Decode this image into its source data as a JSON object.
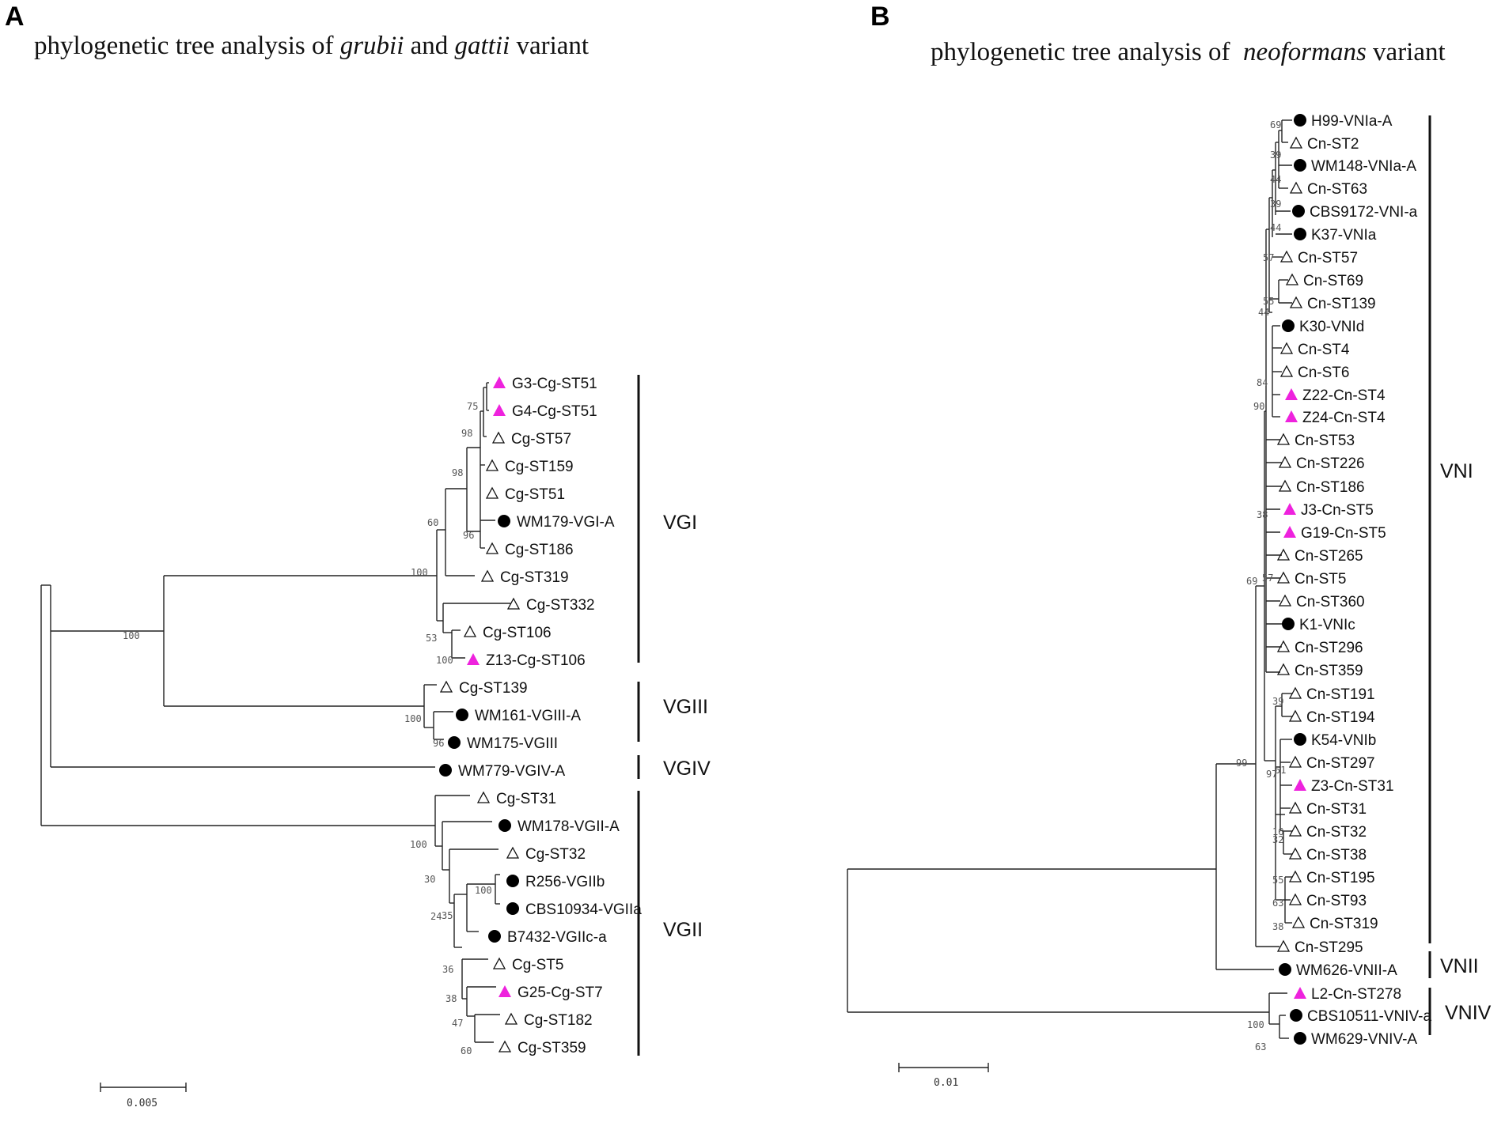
{
  "panelA": {
    "letter": "A",
    "title_pre": "phylogenetic tree analysis of ",
    "title_it1": "grubii",
    "title_mid": " and ",
    "title_it2": "gattii",
    "title_post": " variant",
    "leaves": [
      {
        "label": "G3-Cg-ST51",
        "marker": "magenta-triangle"
      },
      {
        "label": "G4-Cg-ST51",
        "marker": "magenta-triangle"
      },
      {
        "label": "Cg-ST57",
        "marker": "open-triangle"
      },
      {
        "label": "Cg-ST159",
        "marker": "open-triangle"
      },
      {
        "label": "Cg-ST51",
        "marker": "open-triangle"
      },
      {
        "label": "WM179-VGI-A",
        "marker": "black-circle"
      },
      {
        "label": "Cg-ST186",
        "marker": "open-triangle"
      },
      {
        "label": "Cg-ST319",
        "marker": "open-triangle"
      },
      {
        "label": "Cg-ST332",
        "marker": "open-triangle"
      },
      {
        "label": "Cg-ST106",
        "marker": "open-triangle"
      },
      {
        "label": "Z13-Cg-ST106",
        "marker": "magenta-triangle"
      },
      {
        "label": "Cg-ST139",
        "marker": "open-triangle"
      },
      {
        "label": "WM161-VGIII-A",
        "marker": "black-circle"
      },
      {
        "label": "WM175-VGIII",
        "marker": "black-circle"
      },
      {
        "label": "WM779-VGIV-A",
        "marker": "black-circle"
      },
      {
        "label": "Cg-ST31",
        "marker": "open-triangle"
      },
      {
        "label": "WM178-VGII-A",
        "marker": "black-circle"
      },
      {
        "label": "Cg-ST32",
        "marker": "open-triangle"
      },
      {
        "label": "R256-VGIIb",
        "marker": "black-circle"
      },
      {
        "label": "CBS10934-VGIIa",
        "marker": "black-circle"
      },
      {
        "label": "B7432-VGIIc-a",
        "marker": "black-circle"
      },
      {
        "label": "Cg-ST5",
        "marker": "open-triangle"
      },
      {
        "label": "G25-Cg-ST7",
        "marker": "magenta-triangle"
      },
      {
        "label": "Cg-ST182",
        "marker": "open-triangle"
      },
      {
        "label": "Cg-ST359",
        "marker": "open-triangle"
      }
    ],
    "bootstraps": [
      "75",
      "98",
      "98",
      "60",
      "96",
      "100",
      "100",
      "53",
      "100",
      "100",
      "96",
      "100",
      "30",
      "24",
      "35",
      "100",
      "36",
      "38",
      "47",
      "60"
    ],
    "clades": [
      "VGI",
      "VGIII",
      "VGIV",
      "VGII"
    ],
    "scale_label": "0.005"
  },
  "panelB": {
    "letter": "B",
    "title_pre": "phylogenetic tree analysis of  ",
    "title_it": "neoformans",
    "title_post": " variant",
    "leaves": [
      {
        "label": "H99-VNIa-A",
        "marker": "black-circle"
      },
      {
        "label": "Cn-ST2",
        "marker": "open-triangle"
      },
      {
        "label": "WM148-VNIa-A",
        "marker": "black-circle"
      },
      {
        "label": "Cn-ST63",
        "marker": "open-triangle"
      },
      {
        "label": "CBS9172-VNI-a",
        "marker": "black-circle"
      },
      {
        "label": "K37-VNIa",
        "marker": "black-circle"
      },
      {
        "label": "Cn-ST57",
        "marker": "open-triangle"
      },
      {
        "label": "Cn-ST69",
        "marker": "open-triangle"
      },
      {
        "label": "Cn-ST139",
        "marker": "open-triangle"
      },
      {
        "label": "K30-VNId",
        "marker": "black-circle"
      },
      {
        "label": "Cn-ST4",
        "marker": "open-triangle"
      },
      {
        "label": "Cn-ST6",
        "marker": "open-triangle"
      },
      {
        "label": "Z22-Cn-ST4",
        "marker": "magenta-triangle"
      },
      {
        "label": "Z24-Cn-ST4",
        "marker": "magenta-triangle"
      },
      {
        "label": "Cn-ST53",
        "marker": "open-triangle"
      },
      {
        "label": "Cn-ST226",
        "marker": "open-triangle"
      },
      {
        "label": "Cn-ST186",
        "marker": "open-triangle"
      },
      {
        "label": "J3-Cn-ST5",
        "marker": "magenta-triangle"
      },
      {
        "label": "G19-Cn-ST5",
        "marker": "magenta-triangle"
      },
      {
        "label": "Cn-ST265",
        "marker": "open-triangle"
      },
      {
        "label": "Cn-ST5",
        "marker": "open-triangle"
      },
      {
        "label": "Cn-ST360",
        "marker": "open-triangle"
      },
      {
        "label": "K1-VNIc",
        "marker": "black-circle"
      },
      {
        "label": "Cn-ST296",
        "marker": "open-triangle"
      },
      {
        "label": "Cn-ST359",
        "marker": "open-triangle"
      },
      {
        "label": "Cn-ST191",
        "marker": "open-triangle"
      },
      {
        "label": "Cn-ST194",
        "marker": "open-triangle"
      },
      {
        "label": "K54-VNIb",
        "marker": "black-circle"
      },
      {
        "label": "Cn-ST297",
        "marker": "open-triangle"
      },
      {
        "label": "Z3-Cn-ST31",
        "marker": "magenta-triangle"
      },
      {
        "label": "Cn-ST31",
        "marker": "open-triangle"
      },
      {
        "label": "Cn-ST32",
        "marker": "open-triangle"
      },
      {
        "label": "Cn-ST38",
        "marker": "open-triangle"
      },
      {
        "label": "Cn-ST195",
        "marker": "open-triangle"
      },
      {
        "label": "Cn-ST93",
        "marker": "open-triangle"
      },
      {
        "label": "Cn-ST319",
        "marker": "open-triangle"
      },
      {
        "label": "Cn-ST295",
        "marker": "open-triangle"
      },
      {
        "label": "WM626-VNII-A",
        "marker": "black-circle"
      },
      {
        "label": "L2-Cn-ST278",
        "marker": "magenta-triangle"
      },
      {
        "label": "CBS10511-VNIV-a",
        "marker": "black-circle"
      },
      {
        "label": "WM629-VNIV-A",
        "marker": "black-circle"
      }
    ],
    "bootstraps": [
      "69",
      "39",
      "44",
      "39",
      "44",
      "57",
      "55",
      "44",
      "84",
      "90",
      "38",
      "57",
      "69",
      "39",
      "51",
      "97",
      "16",
      "32",
      "55",
      "63",
      "38",
      "99",
      "100",
      "63"
    ],
    "clades": [
      "VNI",
      "VNII",
      "VNIV"
    ],
    "scale_label": "0.01"
  },
  "colors": {
    "magenta": "#ee22dd",
    "black": "#000000",
    "line": "#222222"
  }
}
